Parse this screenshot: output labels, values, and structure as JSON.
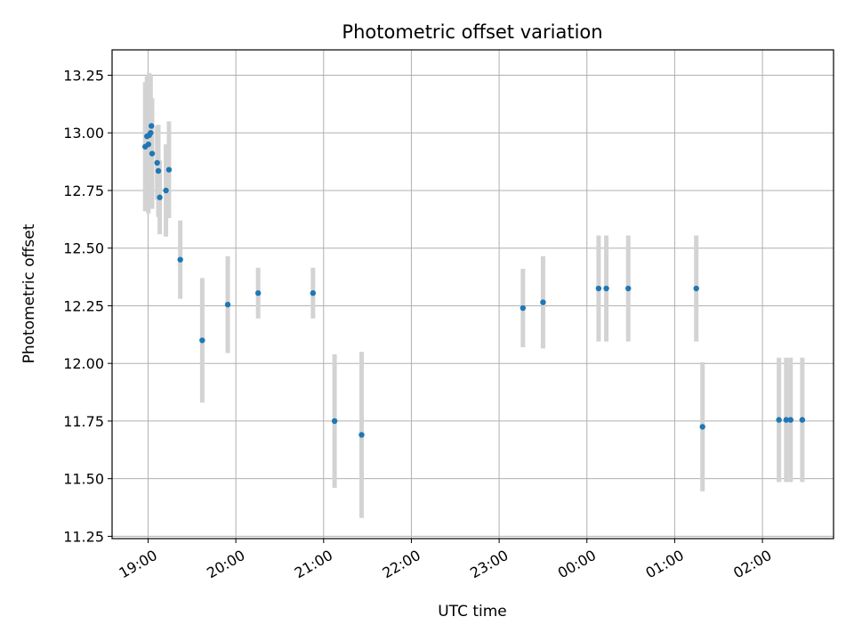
{
  "chart_data": {
    "type": "scatter",
    "title": "Photometric offset variation",
    "xlabel": "UTC time",
    "ylabel": "Photometric offset",
    "x_unit": "hours since 18:00 UTC",
    "xlim": [
      0.59,
      8.81
    ],
    "ylim": [
      11.24,
      13.36
    ],
    "grid": true,
    "x_ticks": [
      {
        "value": 1,
        "label": "19:00"
      },
      {
        "value": 2,
        "label": "20:00"
      },
      {
        "value": 3,
        "label": "21:00"
      },
      {
        "value": 4,
        "label": "22:00"
      },
      {
        "value": 5,
        "label": "23:00"
      },
      {
        "value": 6,
        "label": "00:00"
      },
      {
        "value": 7,
        "label": "01:00"
      },
      {
        "value": 8,
        "label": "02:00"
      }
    ],
    "y_ticks": [
      {
        "value": 11.25,
        "label": "11.25"
      },
      {
        "value": 11.5,
        "label": "11.50"
      },
      {
        "value": 11.75,
        "label": "11.75"
      },
      {
        "value": 12.0,
        "label": "12.00"
      },
      {
        "value": 12.25,
        "label": "12.25"
      },
      {
        "value": 12.5,
        "label": "12.50"
      },
      {
        "value": 12.75,
        "label": "12.75"
      },
      {
        "value": 13.0,
        "label": "13.00"
      },
      {
        "value": 13.25,
        "label": "13.25"
      }
    ],
    "marker_color": "#1f77b4",
    "errorbar_color": "#d3d3d3",
    "points": [
      {
        "x": 0.967,
        "y": 12.94,
        "err": 0.28
      },
      {
        "x": 0.988,
        "y": 12.985,
        "err": 0.26
      },
      {
        "x": 1.004,
        "y": 12.95,
        "err": 0.3
      },
      {
        "x": 1.013,
        "y": 12.99,
        "err": 0.27
      },
      {
        "x": 1.029,
        "y": 13.0,
        "err": 0.25
      },
      {
        "x": 1.038,
        "y": 13.03,
        "err": 0.12
      },
      {
        "x": 1.046,
        "y": 12.91,
        "err": 0.24
      },
      {
        "x": 1.104,
        "y": 12.87,
        "err": 0.16
      },
      {
        "x": 1.117,
        "y": 12.835,
        "err": 0.2
      },
      {
        "x": 1.133,
        "y": 12.72,
        "err": 0.16
      },
      {
        "x": 1.204,
        "y": 12.75,
        "err": 0.2
      },
      {
        "x": 1.238,
        "y": 12.84,
        "err": 0.21
      },
      {
        "x": 1.367,
        "y": 12.45,
        "err": 0.17
      },
      {
        "x": 1.617,
        "y": 12.1,
        "err": 0.27
      },
      {
        "x": 1.908,
        "y": 12.255,
        "err": 0.21
      },
      {
        "x": 2.254,
        "y": 12.305,
        "err": 0.11
      },
      {
        "x": 2.879,
        "y": 12.305,
        "err": 0.11
      },
      {
        "x": 3.125,
        "y": 11.75,
        "err": 0.29
      },
      {
        "x": 3.433,
        "y": 11.69,
        "err": 0.36
      },
      {
        "x": 5.271,
        "y": 12.24,
        "err": 0.17
      },
      {
        "x": 5.5,
        "y": 12.265,
        "err": 0.2
      },
      {
        "x": 6.133,
        "y": 12.325,
        "err": 0.23
      },
      {
        "x": 6.221,
        "y": 12.325,
        "err": 0.23
      },
      {
        "x": 6.471,
        "y": 12.325,
        "err": 0.23
      },
      {
        "x": 7.246,
        "y": 12.325,
        "err": 0.23
      },
      {
        "x": 7.317,
        "y": 11.725,
        "err": 0.28
      },
      {
        "x": 8.188,
        "y": 11.755,
        "err": 0.27
      },
      {
        "x": 8.271,
        "y": 11.755,
        "err": 0.27
      },
      {
        "x": 8.321,
        "y": 11.755,
        "err": 0.27
      },
      {
        "x": 8.454,
        "y": 11.755,
        "err": 0.27
      }
    ]
  }
}
